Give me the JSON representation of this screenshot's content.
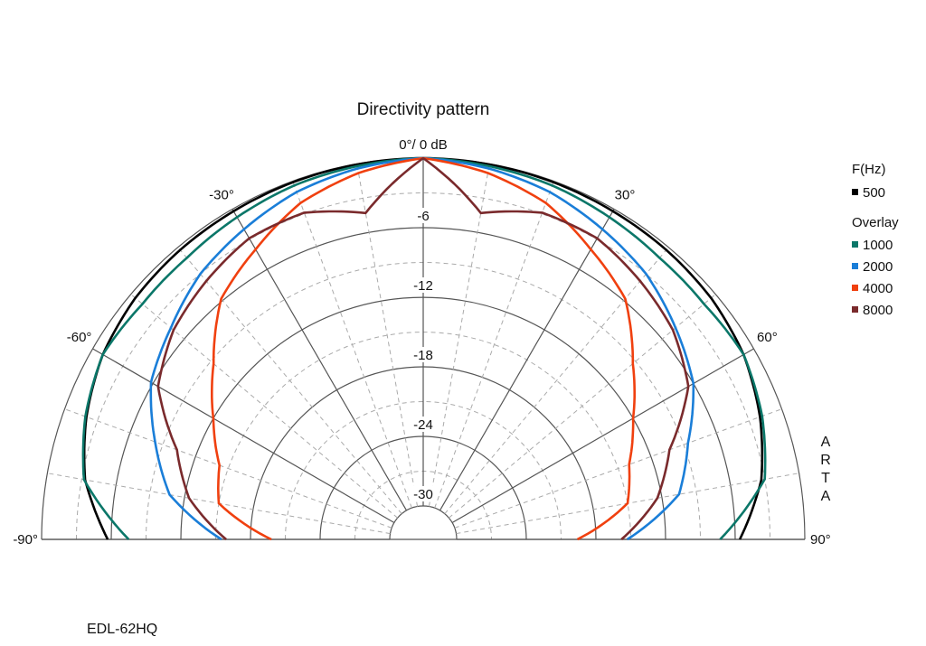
{
  "chart_data": {
    "type": "polar",
    "title": "Directivity pattern",
    "top_label": "0°/ 0 dB",
    "radial_range_db": [
      -30,
      0
    ],
    "radial_ticks": [
      "-6",
      "-12",
      "-18",
      "-24",
      "-30"
    ],
    "radial_tick_values": [
      -6,
      -12,
      -18,
      -24,
      -30
    ],
    "angle_range_deg": [
      -90,
      90
    ],
    "angle_ticks": [
      {
        "label": "-90°",
        "value": -90
      },
      {
        "label": "-60°",
        "value": -60
      },
      {
        "label": "-30°",
        "value": -30
      },
      {
        "label": "30°",
        "value": 30
      },
      {
        "label": "60°",
        "value": 60
      },
      {
        "label": "90°",
        "value": 90
      }
    ],
    "grid": true,
    "legend": {
      "position": "right",
      "header": "F(Hz)",
      "overlay_header": "Overlay"
    },
    "series": [
      {
        "name": "500",
        "color": "#000000",
        "angles": [
          -90,
          -80,
          -70,
          -60,
          -50,
          -40,
          -30,
          -20,
          -10,
          0,
          10,
          20,
          30,
          40,
          50,
          60,
          70,
          80,
          90
        ],
        "db": [
          -5.7,
          -3.3,
          -2.0,
          -1.0,
          -0.5,
          -0.3,
          -0.2,
          -0.1,
          -0.05,
          0,
          -0.05,
          -0.1,
          -0.2,
          -0.3,
          -0.5,
          -1.0,
          -2.0,
          -3.3,
          -5.6
        ]
      },
      {
        "name": "1000",
        "color": "#0b7769",
        "angles": [
          -90,
          -80,
          -70,
          -60,
          -50,
          -40,
          -30,
          -20,
          -10,
          0,
          10,
          20,
          30,
          40,
          50,
          60,
          70,
          80,
          90
        ],
        "db": [
          -7.5,
          -3.2,
          -1.9,
          -1.0,
          -1.3,
          -1.2,
          -0.8,
          -0.4,
          -0.2,
          0,
          -0.2,
          -0.4,
          -0.8,
          -1.2,
          -1.3,
          -1.0,
          -1.8,
          -3.0,
          -7.3
        ]
      },
      {
        "name": "2000",
        "color": "#1a7ed8",
        "angles": [
          -90,
          -80,
          -70,
          -60,
          -50,
          -40,
          -30,
          -20,
          -10,
          0,
          10,
          20,
          30,
          40,
          50,
          60,
          70,
          80,
          90
        ],
        "db": [
          -15.5,
          -10.7,
          -8.3,
          -5.8,
          -4.5,
          -3.0,
          -2.0,
          -1.0,
          -0.4,
          0,
          -0.4,
          -1.0,
          -2.0,
          -3.0,
          -4.5,
          -6.0,
          -8.6,
          -10.5,
          -15.3
        ]
      },
      {
        "name": "4000",
        "color": "#f0400f",
        "angles": [
          -90,
          -80,
          -70,
          -60,
          -50,
          -40,
          -30,
          -20,
          -10,
          0,
          10,
          20,
          30,
          40,
          50,
          60,
          70,
          80,
          90
        ],
        "db": [
          -19.8,
          -15.0,
          -14.2,
          -12.0,
          -9.3,
          -5.8,
          -4.0,
          -2.0,
          -0.8,
          0,
          -0.8,
          -2.0,
          -4.0,
          -5.8,
          -9.3,
          -12.0,
          -14.0,
          -15.0,
          -19.6
        ]
      },
      {
        "name": "8000",
        "color": "#7a2a2c",
        "angles": [
          -90,
          -80,
          -70,
          -60,
          -50,
          -40,
          -30,
          -20,
          -10,
          -5,
          0,
          5,
          10,
          20,
          30,
          40,
          50,
          60,
          70,
          80,
          90
        ],
        "db": [
          -15.9,
          -12.4,
          -10.3,
          -6.5,
          -4.8,
          -3.8,
          -2.9,
          -2.9,
          -4.3,
          -2.1,
          0,
          -2.1,
          -4.3,
          -2.9,
          -2.9,
          -3.8,
          -4.8,
          -6.5,
          -10.3,
          -12.4,
          -15.8
        ]
      }
    ]
  },
  "watermark": "ARTA",
  "footer": {
    "model": "EDL-62HQ"
  }
}
